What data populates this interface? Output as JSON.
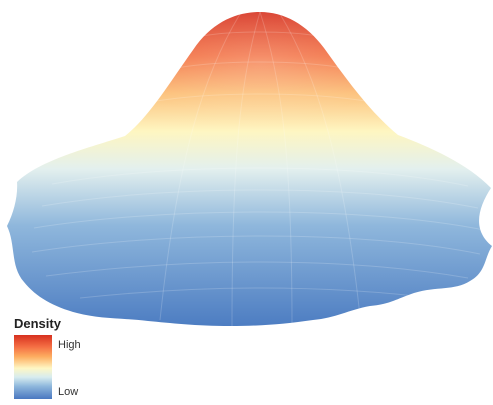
{
  "chart_data": {
    "type": "heatmap",
    "title": "",
    "xlabel": "",
    "ylabel": "",
    "legend": {
      "title": "Density",
      "high_label": "High",
      "low_label": "Low",
      "placement": "bottom-left"
    },
    "color_scale": [
      "#4575b4",
      "#91bfdb",
      "#fef7c4",
      "#fc8d59",
      "#d73027"
    ],
    "surface": "3D density peak, single mode, colored from low (blue) at base to high (red) at summit",
    "grid": false
  }
}
